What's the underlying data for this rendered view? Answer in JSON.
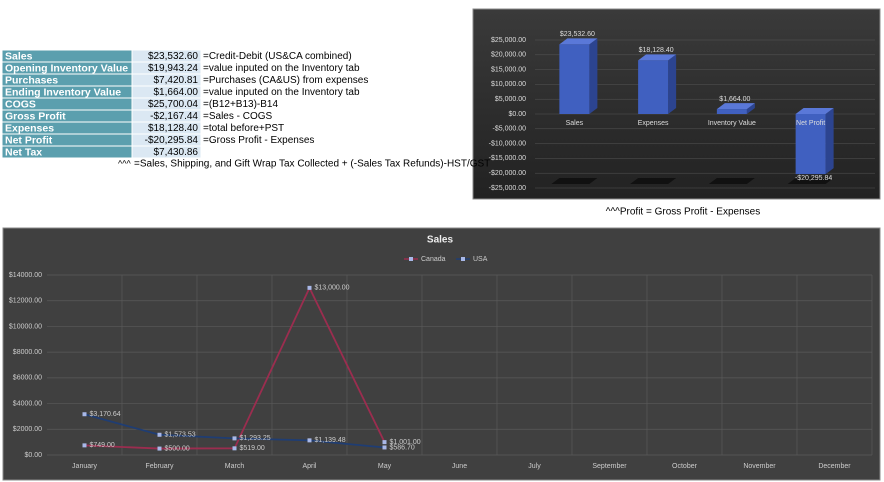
{
  "table": {
    "rows": [
      [
        "Sales",
        "$23,532.60",
        "=Credit-Debit (US&CA combined)"
      ],
      [
        "Opening Inventory Value",
        "$19,943.24",
        "=value inputed on the Inventory tab"
      ],
      [
        "Purchases",
        "$7,420.81",
        "=Purchases (CA&US) from expenses"
      ],
      [
        "Ending Inventory Value",
        "$1,664.00",
        "=value inputed on the Inventory tab"
      ],
      [
        "COGS",
        "$25,700.04",
        "=(B12+B13)-B14"
      ],
      [
        "Gross Profit",
        "-$2,167.44",
        "=Sales - COGS"
      ],
      [
        "Expenses",
        "$18,128.40",
        "=total before+PST"
      ],
      [
        "Net Profit",
        "-$20,295.84",
        "=Gross Profit - Expenses"
      ],
      [
        "Net Tax",
        "$7,430.86"
      ]
    ],
    "note_mark": "^^^",
    "note": "=Sales, Shipping, and Gift Wrap Tax Collected + (-Sales Tax Refunds)-HST/GST"
  },
  "bar_note": "^^^Profit = Gross Profit - Expenses",
  "chart_data": [
    {
      "type": "bar",
      "categories": [
        "Sales",
        "Expenses",
        "Inventory Value",
        "Net Profit"
      ],
      "values": [
        23532.6,
        18128.4,
        1664.0,
        -20295.84
      ],
      "value_labels": [
        "$23,532.60",
        "$18,128.40",
        "$1,664.00",
        "-$20,295.84"
      ],
      "color": "#4060c0",
      "ylim": [
        -25000,
        25000
      ],
      "yticks": [
        {
          "value": 25000,
          "label": "$25,000.00"
        },
        {
          "value": 20000,
          "label": "$20,000.00"
        },
        {
          "value": 15000,
          "label": "$15,000.00"
        },
        {
          "value": 10000,
          "label": "$10,000.00"
        },
        {
          "value": 5000,
          "label": "$5,000.00"
        },
        {
          "value": 0,
          "label": "$0.00"
        },
        {
          "value": -5000,
          "label": "-$5,000.00"
        },
        {
          "value": -10000,
          "label": "-$10,000.00"
        },
        {
          "value": -15000,
          "label": "-$15,000.00"
        },
        {
          "value": -20000,
          "label": "-$20,000.00"
        },
        {
          "value": -25000,
          "label": "-$25,000.00"
        }
      ],
      "grid": true
    },
    {
      "type": "line",
      "title": "Sales",
      "categories": [
        "January",
        "February",
        "March",
        "April",
        "May",
        "June",
        "July",
        "September",
        "October",
        "November",
        "December"
      ],
      "series": [
        {
          "name": "Canada",
          "color": "#9b2d4f",
          "values": [
            749,
            500,
            519,
            13000,
            1001,
            null,
            null,
            null,
            null,
            null,
            null
          ],
          "value_labels": [
            "$749.00",
            "$500.00",
            "$519.00",
            "$13,000.00",
            "$1,001.00",
            null,
            null,
            null,
            null,
            null,
            null
          ]
        },
        {
          "name": "USA",
          "color": "#1f3d73",
          "values": [
            3170.64,
            1573.53,
            1293.25,
            1139.48,
            586.7,
            null,
            null,
            null,
            null,
            null,
            null
          ],
          "value_labels": [
            "$3,170.64",
            "$1,573.53",
            "$1,293.25",
            "$1,139.48",
            "$586.70",
            null,
            null,
            null,
            null,
            null,
            null
          ]
        }
      ],
      "ylim": [
        0,
        14000
      ],
      "yticks": [
        {
          "value": 0,
          "label": "$0.00"
        },
        {
          "value": 2000,
          "label": "$2000.00"
        },
        {
          "value": 4000,
          "label": "$4000.00"
        },
        {
          "value": 6000,
          "label": "$6000.00"
        },
        {
          "value": 8000,
          "label": "$8000.00"
        },
        {
          "value": 10000,
          "label": "$10000.00"
        },
        {
          "value": 12000,
          "label": "$12000.00"
        },
        {
          "value": 14000,
          "label": "$14000.00"
        }
      ],
      "grid": true,
      "legend": "top"
    }
  ]
}
